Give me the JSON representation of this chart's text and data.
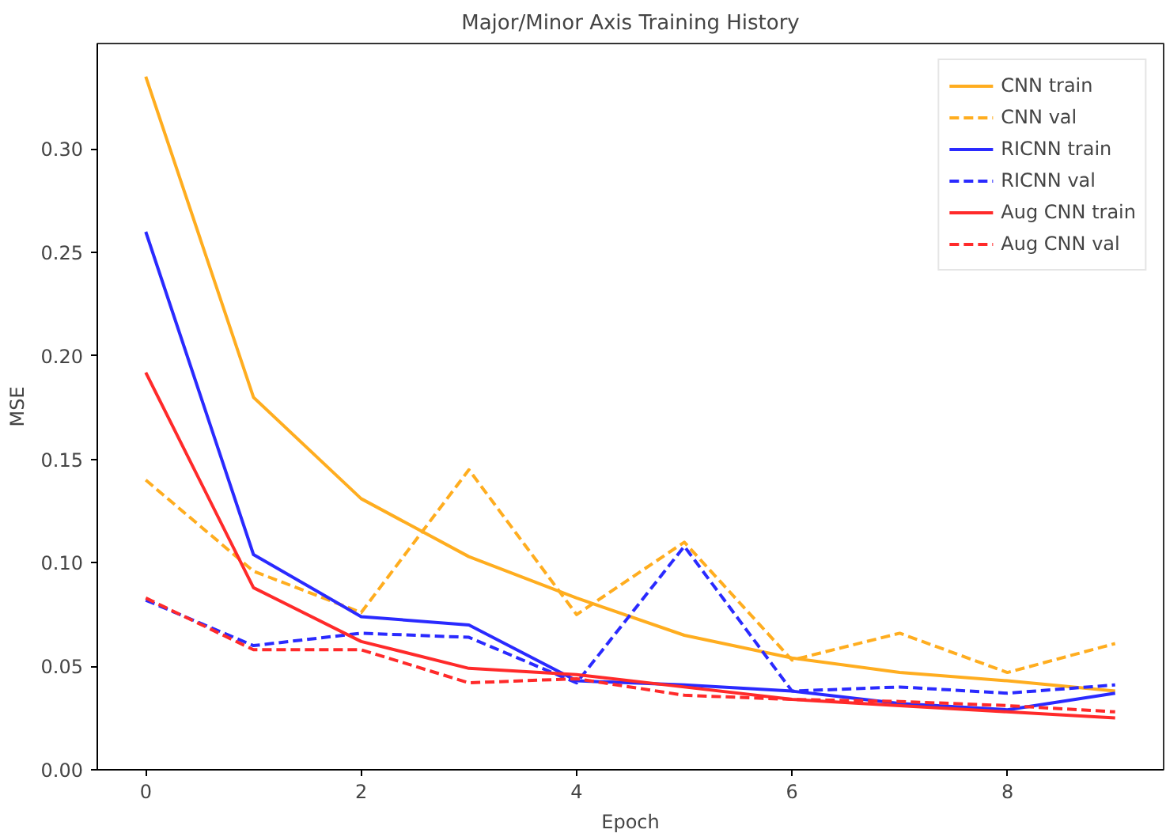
{
  "chart_data": {
    "type": "line",
    "title": "Major/Minor Axis Training History",
    "xlabel": "Epoch",
    "ylabel": "MSE",
    "x": [
      0,
      1,
      2,
      3,
      4,
      5,
      6,
      7,
      8,
      9
    ],
    "xlim": [
      -0.45,
      9.45
    ],
    "ylim": [
      0,
      0.351
    ],
    "xticks": [
      0,
      2,
      4,
      6,
      8
    ],
    "yticks": [
      {
        "value": 0,
        "label": "0.00"
      },
      {
        "value": 0.05,
        "label": "0.05"
      },
      {
        "value": 0.1,
        "label": "0.10"
      },
      {
        "value": 0.15,
        "label": "0.15"
      },
      {
        "value": 0.2,
        "label": "0.20"
      },
      {
        "value": 0.25,
        "label": "0.25"
      },
      {
        "value": 0.3,
        "label": "0.30"
      }
    ],
    "grid": false,
    "legend": "top right",
    "series": [
      {
        "name": "CNN train",
        "color": "#ffad1f",
        "line_style": "solid",
        "values": [
          0.335,
          0.18,
          0.131,
          0.103,
          0.083,
          0.065,
          0.054,
          0.047,
          0.043,
          0.038
        ]
      },
      {
        "name": "CNN val",
        "color": "#ffad1f",
        "line_style": "dashed",
        "values": [
          0.14,
          0.096,
          0.076,
          0.145,
          0.075,
          0.11,
          0.053,
          0.066,
          0.047,
          0.061
        ]
      },
      {
        "name": "RICNN train",
        "color": "#2a2aff",
        "line_style": "solid",
        "values": [
          0.26,
          0.104,
          0.074,
          0.07,
          0.043,
          0.041,
          0.038,
          0.032,
          0.029,
          0.037
        ]
      },
      {
        "name": "RICNN val",
        "color": "#2a2aff",
        "line_style": "dashed",
        "values": [
          0.082,
          0.06,
          0.066,
          0.064,
          0.042,
          0.108,
          0.038,
          0.04,
          0.037,
          0.041
        ]
      },
      {
        "name": "Aug CNN train",
        "color": "#ff2a2a",
        "line_style": "solid",
        "values": [
          0.192,
          0.088,
          0.062,
          0.049,
          0.046,
          0.04,
          0.034,
          0.031,
          0.028,
          0.025
        ]
      },
      {
        "name": "Aug CNN val",
        "color": "#ff2a2a",
        "line_style": "dashed",
        "values": [
          0.083,
          0.058,
          0.058,
          0.042,
          0.044,
          0.036,
          0.034,
          0.033,
          0.031,
          0.028
        ]
      }
    ]
  }
}
